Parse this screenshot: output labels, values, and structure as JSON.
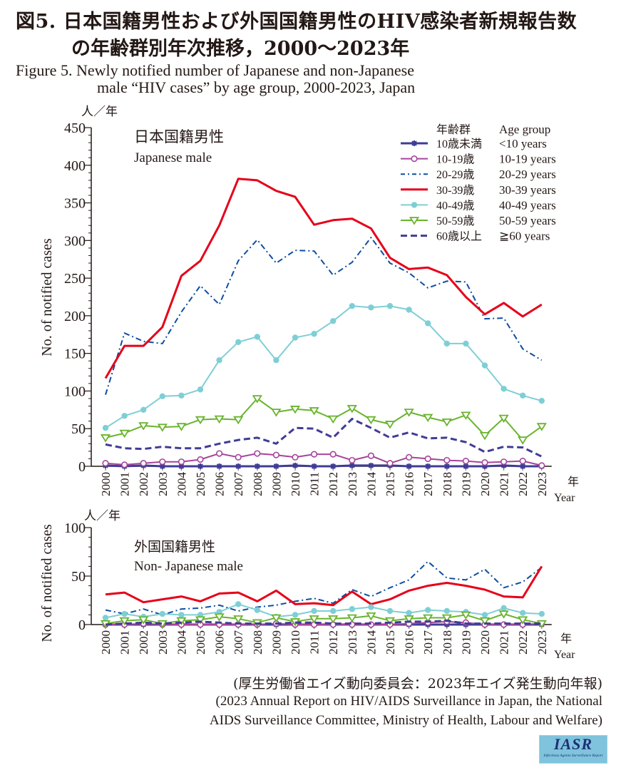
{
  "title": {
    "jp_line1": "図5. 日本国籍男性および外国国籍男性のHIV感染者新規報告数",
    "jp_line2": "の年齢群別年次推移，2000～2023年",
    "en_line1": "Figure 5. Newly notified number of Japanese and non-Japanese",
    "en_line2": "male “HIV cases” by age group, 2000-2023, Japan"
  },
  "source": {
    "jp": "(厚生労働省エイズ動向委員会：2023年エイズ発生動向年報)",
    "en_line1": "(2023 Annual Report on HIV/AIDS Surveillance in Japan, the National",
    "en_line2": "AIDS Surveillance Committee, Ministry of Health, Labour and Welfare)"
  },
  "logo": {
    "main": "IASR",
    "sub": "Infectious Agents Surveillance Report"
  },
  "legend": {
    "header_jp": "年齢群",
    "header_en": "Age group",
    "placement": "top-right of upper chart"
  },
  "chart_data": [
    {
      "type": "line",
      "title": "日本国籍男性",
      "subtitle": "Japanese male",
      "ylabel": "No. of notified cases",
      "yunit": "人／年",
      "xlabel_jp": "年",
      "xlabel": "Year",
      "ylim": [
        0,
        450
      ],
      "yticks": [
        0,
        50,
        100,
        150,
        200,
        250,
        300,
        350,
        400,
        450
      ],
      "x": [
        2000,
        2001,
        2002,
        2003,
        2004,
        2005,
        2006,
        2007,
        2008,
        2009,
        2010,
        2011,
        2012,
        2013,
        2014,
        2015,
        2016,
        2017,
        2018,
        2019,
        2020,
        2021,
        2022,
        2023
      ],
      "series": [
        {
          "key": "u10",
          "name_jp": "10歳未満",
          "name_en": "<10 years",
          "color": "#3f3c96",
          "style": "solid-star",
          "values": [
            1,
            0,
            1,
            0,
            0,
            0,
            0,
            0,
            0,
            0,
            1,
            0,
            0,
            1,
            1,
            1,
            0,
            0,
            0,
            0,
            0,
            1,
            0,
            0
          ]
        },
        {
          "key": "a10",
          "name_jp": "10-19歳",
          "name_en": "10-19 years",
          "color": "#a6449b",
          "style": "solid-circle-open",
          "values": [
            4,
            2,
            4,
            6,
            6,
            9,
            17,
            12,
            17,
            15,
            12,
            16,
            16,
            8,
            14,
            4,
            12,
            10,
            8,
            7,
            5,
            6,
            7,
            1
          ]
        },
        {
          "key": "a20",
          "name_jp": "20-29歳",
          "name_en": "20-29 years",
          "color": "#0e4ea0",
          "style": "dashdot",
          "values": [
            95,
            177,
            166,
            163,
            205,
            240,
            215,
            273,
            301,
            270,
            287,
            286,
            254,
            271,
            304,
            270,
            257,
            237,
            246,
            245,
            196,
            197,
            156,
            141
          ]
        },
        {
          "key": "a30",
          "name_jp": "30-39歳",
          "name_en": "30-39 years",
          "color": "#e60019",
          "style": "solid-thick",
          "values": [
            117,
            160,
            160,
            185,
            253,
            273,
            320,
            382,
            380,
            366,
            358,
            321,
            327,
            329,
            316,
            277,
            262,
            264,
            254,
            225,
            202,
            217,
            199,
            215
          ]
        },
        {
          "key": "a40",
          "name_jp": "40-49歳",
          "name_en": "40-49 years",
          "color": "#7ecfd5",
          "style": "solid-dot",
          "values": [
            51,
            67,
            75,
            93,
            94,
            102,
            141,
            165,
            172,
            141,
            171,
            176,
            193,
            213,
            211,
            213,
            208,
            190,
            163,
            163,
            134,
            103,
            94,
            87
          ]
        },
        {
          "key": "a50",
          "name_jp": "50-59歳",
          "name_en": "50-59 years",
          "color": "#69b42e",
          "style": "solid-triangle-open",
          "values": [
            38,
            44,
            54,
            52,
            53,
            62,
            63,
            62,
            90,
            72,
            76,
            74,
            63,
            77,
            62,
            56,
            72,
            65,
            59,
            68,
            41,
            64,
            35,
            53
          ]
        },
        {
          "key": "a60",
          "name_jp": "60歳以上",
          "name_en": "≧60 years",
          "color": "#413c96",
          "style": "dashed",
          "values": [
            29,
            24,
            23,
            26,
            24,
            24,
            30,
            35,
            38,
            30,
            51,
            50,
            38,
            63,
            51,
            38,
            45,
            37,
            38,
            32,
            19,
            26,
            25,
            13
          ]
        }
      ]
    },
    {
      "type": "line",
      "title": "外国国籍男性",
      "subtitle": "Non- Japanese male",
      "ylabel": "No. of notified cases",
      "yunit": "人／年",
      "xlabel_jp": "年",
      "xlabel": "Year",
      "ylim": [
        0,
        100
      ],
      "yticks": [
        0,
        50,
        100
      ],
      "x": [
        2000,
        2001,
        2002,
        2003,
        2004,
        2005,
        2006,
        2007,
        2008,
        2009,
        2010,
        2011,
        2012,
        2013,
        2014,
        2015,
        2016,
        2017,
        2018,
        2019,
        2020,
        2021,
        2022,
        2023
      ],
      "series": [
        {
          "key": "u10",
          "name_jp": "10歳未満",
          "name_en": "<10 years",
          "color": "#3f3c96",
          "style": "solid-star",
          "values": [
            0,
            0,
            0,
            0,
            0,
            0,
            0,
            0,
            0,
            0,
            0,
            0,
            0,
            0,
            0,
            0,
            0,
            0,
            0,
            0,
            0,
            0,
            0,
            0
          ]
        },
        {
          "key": "a10",
          "name_jp": "10-19歳",
          "name_en": "10-19 years",
          "color": "#a6449b",
          "style": "solid-circle-open",
          "values": [
            0,
            0,
            1,
            0,
            0,
            0,
            0,
            0,
            0,
            1,
            0,
            0,
            0,
            0,
            0,
            0,
            1,
            2,
            3,
            2,
            0,
            0,
            0,
            1
          ]
        },
        {
          "key": "a20",
          "name_jp": "20-29歳",
          "name_en": "20-29 years",
          "color": "#0e4ea0",
          "style": "dashdot",
          "values": [
            15,
            11,
            16,
            10,
            16,
            17,
            20,
            14,
            18,
            20,
            24,
            27,
            22,
            36,
            29,
            38,
            46,
            65,
            48,
            46,
            57,
            38,
            44,
            59
          ]
        },
        {
          "key": "a30",
          "name_jp": "30-39歳",
          "name_en": "30-39 years",
          "color": "#e60019",
          "style": "solid-thick",
          "values": [
            31,
            33,
            23,
            26,
            29,
            24,
            32,
            33,
            24,
            35,
            21,
            22,
            20,
            34,
            21,
            26,
            35,
            40,
            43,
            40,
            36,
            29,
            28,
            60
          ]
        },
        {
          "key": "a40",
          "name_jp": "40-49歳",
          "name_en": "40-49 years",
          "color": "#7ecfd5",
          "style": "solid-dot",
          "values": [
            7,
            11,
            8,
            11,
            10,
            10,
            13,
            21,
            15,
            8,
            10,
            14,
            14,
            16,
            18,
            14,
            12,
            15,
            14,
            13,
            10,
            17,
            12,
            11
          ]
        },
        {
          "key": "a50",
          "name_jp": "50-59歳",
          "name_en": "50-59 years",
          "color": "#69b42e",
          "style": "solid-triangle-open",
          "values": [
            1,
            4,
            5,
            1,
            4,
            5,
            8,
            6,
            2,
            7,
            3,
            6,
            6,
            7,
            9,
            4,
            6,
            7,
            7,
            10,
            4,
            11,
            5,
            1
          ]
        },
        {
          "key": "a60",
          "name_jp": "60歳以上",
          "name_en": "≧60 years",
          "color": "#413c96",
          "style": "dashed",
          "values": [
            0,
            1,
            2,
            1,
            2,
            3,
            2,
            1,
            1,
            1,
            2,
            2,
            1,
            1,
            1,
            2,
            3,
            3,
            4,
            1,
            1,
            1,
            1,
            1
          ]
        }
      ]
    }
  ]
}
